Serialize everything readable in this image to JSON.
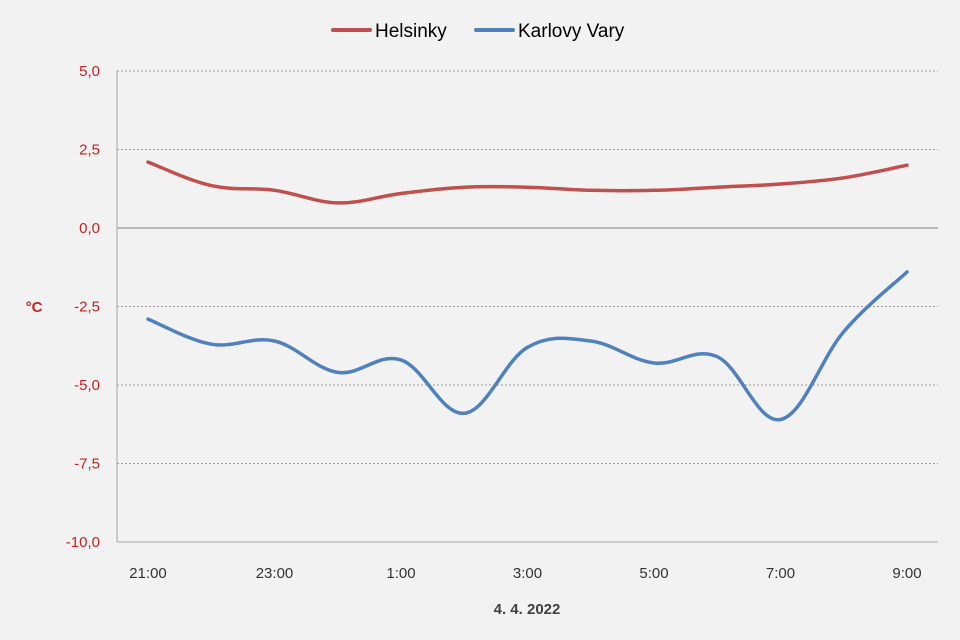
{
  "chart_data": {
    "type": "line",
    "xlabel": "4. 4. 2022",
    "ylabel": "°C",
    "ylim": [
      -10,
      5
    ],
    "y_ticks": [
      "5,0",
      "2,5",
      "0,0",
      "-2,5",
      "-5,0",
      "-7,5",
      "-10,0"
    ],
    "y_tick_values": [
      5,
      2.5,
      0,
      -2.5,
      -5,
      -7.5,
      -10
    ],
    "categories": [
      "21:00",
      "22:00",
      "23:00",
      "0:00",
      "1:00",
      "2:00",
      "3:00",
      "4:00",
      "5:00",
      "6:00",
      "7:00",
      "8:00",
      "9:00"
    ],
    "x_tick_labels": [
      "21:00",
      "23:00",
      "1:00",
      "3:00",
      "5:00",
      "7:00",
      "9:00"
    ],
    "legend_position": "top",
    "grid": "horizontal dashed",
    "series": [
      {
        "name": "Helsinky",
        "color": "#c0504d",
        "values": [
          2.1,
          1.35,
          1.2,
          0.8,
          1.1,
          1.3,
          1.3,
          1.2,
          1.2,
          1.3,
          1.4,
          1.6,
          2.0
        ]
      },
      {
        "name": "Karlovy Vary",
        "color": "#4f81bd",
        "values": [
          -2.9,
          -3.7,
          -3.6,
          -4.6,
          -4.2,
          -5.9,
          -3.8,
          -3.6,
          -4.3,
          -4.1,
          -6.1,
          -3.3,
          -1.4
        ]
      }
    ],
    "colors": {
      "axis_label": "#cc1f1f",
      "background": "#f2f2f2"
    }
  }
}
